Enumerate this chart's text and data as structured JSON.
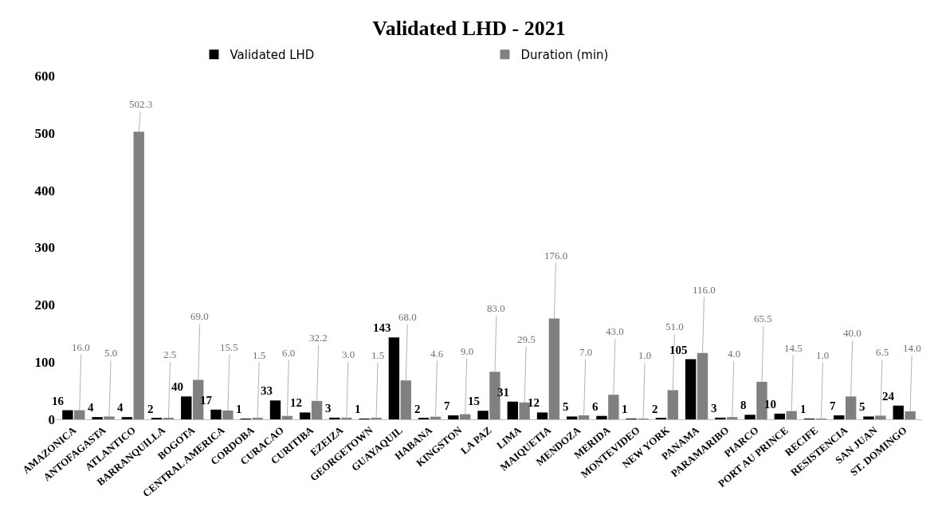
{
  "chart_data": {
    "type": "bar",
    "title": "Validated LHD - 2021",
    "categories": [
      "AMAZONICA",
      "ANTOFAGASTA",
      "ATLANTICO",
      "BARRANQUILLA",
      "BOGOTA",
      "CENTRAL AMERICA",
      "CORDOBA",
      "CURACAO",
      "CURITIBA",
      "EZEIZA",
      "GEORGETOWN",
      "GUAYAQUIL",
      "HABANA",
      "KINGSTON",
      "LA PAZ",
      "LIMA",
      "MAIQUETIA",
      "MENDOZA",
      "MERIDA",
      "MONTEVIDEO",
      "NEW YORK",
      "PANAMA",
      "PARAMARIBO",
      "PIARCO",
      "PORT AU PRINCE",
      "RECIFE",
      "RESISTENCIA",
      "SAN JUAN",
      "ST. DOMINGO"
    ],
    "series": [
      {
        "name": "Validated LHD",
        "color": "#000000",
        "values": [
          16,
          4,
          4,
          2,
          40,
          17,
          1,
          33,
          12,
          3,
          1,
          143,
          2,
          7,
          15,
          31,
          12,
          5,
          6,
          1,
          2,
          105,
          3,
          8,
          10,
          1,
          7,
          5,
          24
        ],
        "value_labels": [
          "16",
          "4",
          "4",
          "2",
          "40",
          "17",
          "1",
          "33",
          "12",
          "3",
          "1",
          "143",
          "2",
          "7",
          "15",
          "31",
          "12",
          "5",
          "6",
          "1",
          "2",
          "105",
          "3",
          "8",
          "10",
          "1",
          "7",
          "5",
          "24"
        ]
      },
      {
        "name": "Duration (min)",
        "color": "#808080",
        "values": [
          16.0,
          5.0,
          502.3,
          2.5,
          69.0,
          15.5,
          1.5,
          6.0,
          32.2,
          3.0,
          1.5,
          68.0,
          4.6,
          9.0,
          83.0,
          29.5,
          176.0,
          7.0,
          43.0,
          1.0,
          51.0,
          116.0,
          4.0,
          65.5,
          14.5,
          1.0,
          40.0,
          6.5,
          14.0
        ],
        "value_labels": [
          "16.0",
          "5.0",
          "502.3",
          "2.5",
          "69.0",
          "15.5",
          "1.5",
          "6.0",
          "32.2",
          "3.0",
          "1.5",
          "68.0",
          "4.6",
          "9.0",
          "83.0",
          "29.5",
          "176.0",
          "7.0",
          "43.0",
          "1.0",
          "51.0",
          "116.0",
          "4.0",
          "65.5",
          "14.5",
          "1.0",
          "40.0",
          "6.5",
          "14.0"
        ]
      }
    ],
    "ylim": [
      0,
      600
    ],
    "yticks": [
      0,
      100,
      200,
      300,
      400,
      500,
      600
    ],
    "legend": "top"
  }
}
